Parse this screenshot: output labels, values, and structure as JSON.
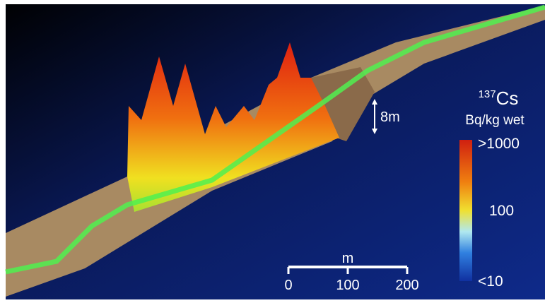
{
  "legend": {
    "isotope_mass": "137",
    "isotope": "Cs",
    "unit": "Bq/kg wet",
    "labels": [
      ">1000",
      "100",
      "<10"
    ]
  },
  "scale_bar": {
    "unit": "m",
    "ticks": [
      "0",
      "100",
      "200"
    ]
  },
  "depth_marker": "8m"
}
